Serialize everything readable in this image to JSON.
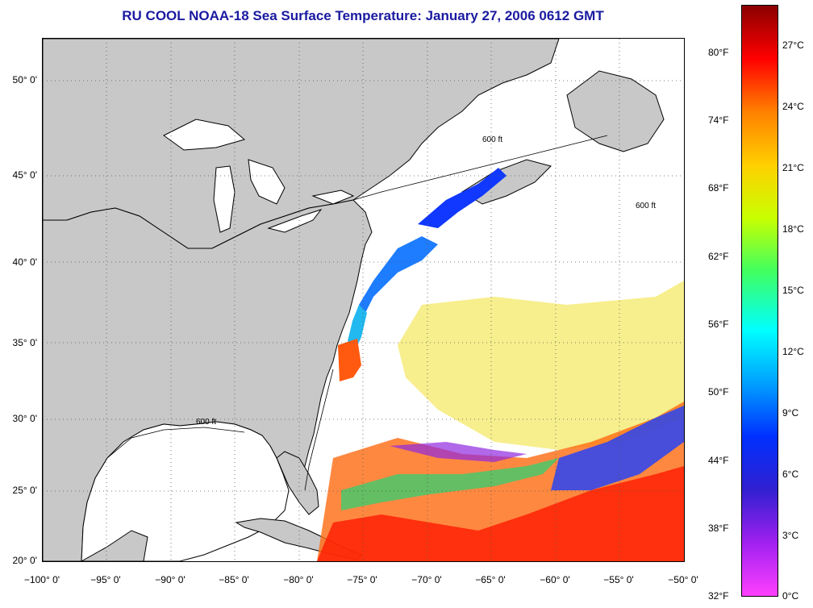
{
  "title": "RU COOL  NOAA-18  Sea Surface Temperature:  January 27, 2006 0612 GMT",
  "map": {
    "lat_labels": [
      "50° 0'",
      "45° 0'",
      "40° 0'",
      "35° 0'",
      "30° 0'",
      "25° 0'",
      "20° 0'"
    ],
    "lon_labels": [
      "−100° 0'",
      "−95° 0'",
      "−90° 0'",
      "−85° 0'",
      "−80° 0'",
      "−75° 0'",
      "−70° 0'",
      "−65° 0'",
      "−60° 0'",
      "−55° 0'",
      "−50° 0'"
    ],
    "contour_label": "600 ft",
    "land_color": "#c8c8c8",
    "ocean_color": "#ffffff"
  },
  "colorbar": {
    "fahrenheit_labels": [
      "80°F",
      "74°F",
      "68°F",
      "62°F",
      "56°F",
      "50°F",
      "44°F",
      "38°F",
      "32°F"
    ],
    "celsius_labels": [
      "27°C",
      "24°C",
      "21°C",
      "18°C",
      "15°C",
      "12°C",
      "9°C",
      "6°C",
      "3°C",
      "0°C"
    ],
    "colors": [
      "#8b0000",
      "#ff0000",
      "#ff8000",
      "#ffd000",
      "#c8ff00",
      "#40ff60",
      "#00ffff",
      "#00a0ff",
      "#0030ff",
      "#3020d0",
      "#a020f0",
      "#ff40ff"
    ]
  }
}
